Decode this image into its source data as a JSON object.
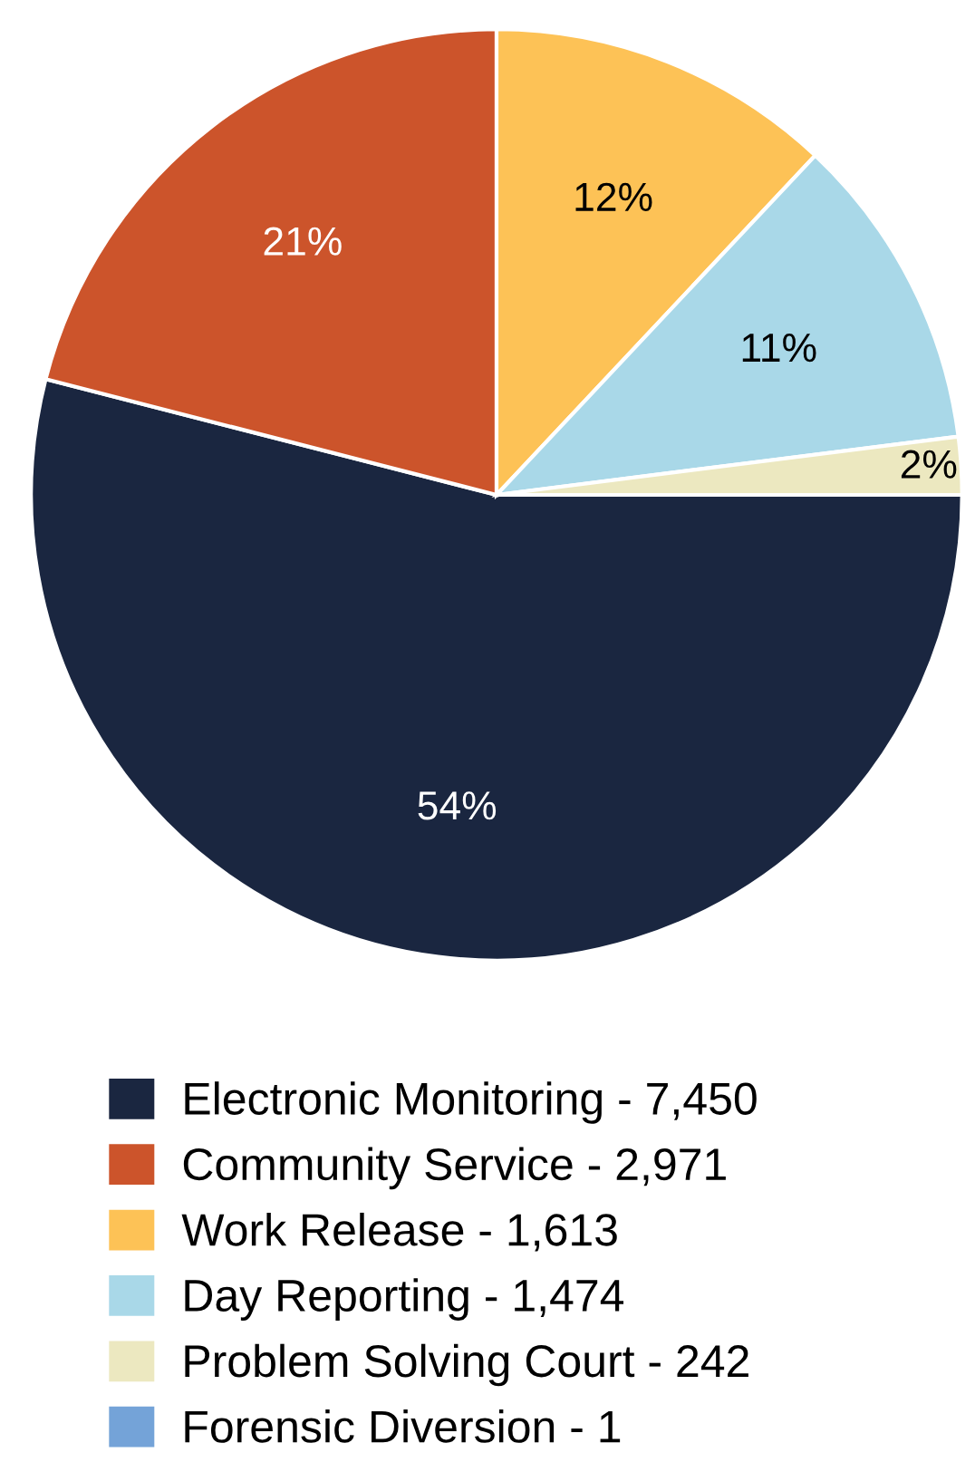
{
  "chart_data": {
    "type": "pie",
    "categories": [
      "Electronic Monitoring - 7,450",
      "Community Service - 2,971",
      "Work Release - 1,613",
      "Day Reporting - 1,474",
      "Problem Solving Court - 242",
      "Forensic Diversion - 1"
    ],
    "values": [
      54,
      21,
      12,
      11,
      2,
      0
    ],
    "colors": [
      "#1a2640",
      "#cc542b",
      "#fdc256",
      "#a9d8e8",
      "#ece8c0",
      "#74a3d8"
    ],
    "value_labels": [
      "54%",
      "21%",
      "12%",
      "11%",
      "2%",
      null
    ],
    "legend": "bottom"
  }
}
